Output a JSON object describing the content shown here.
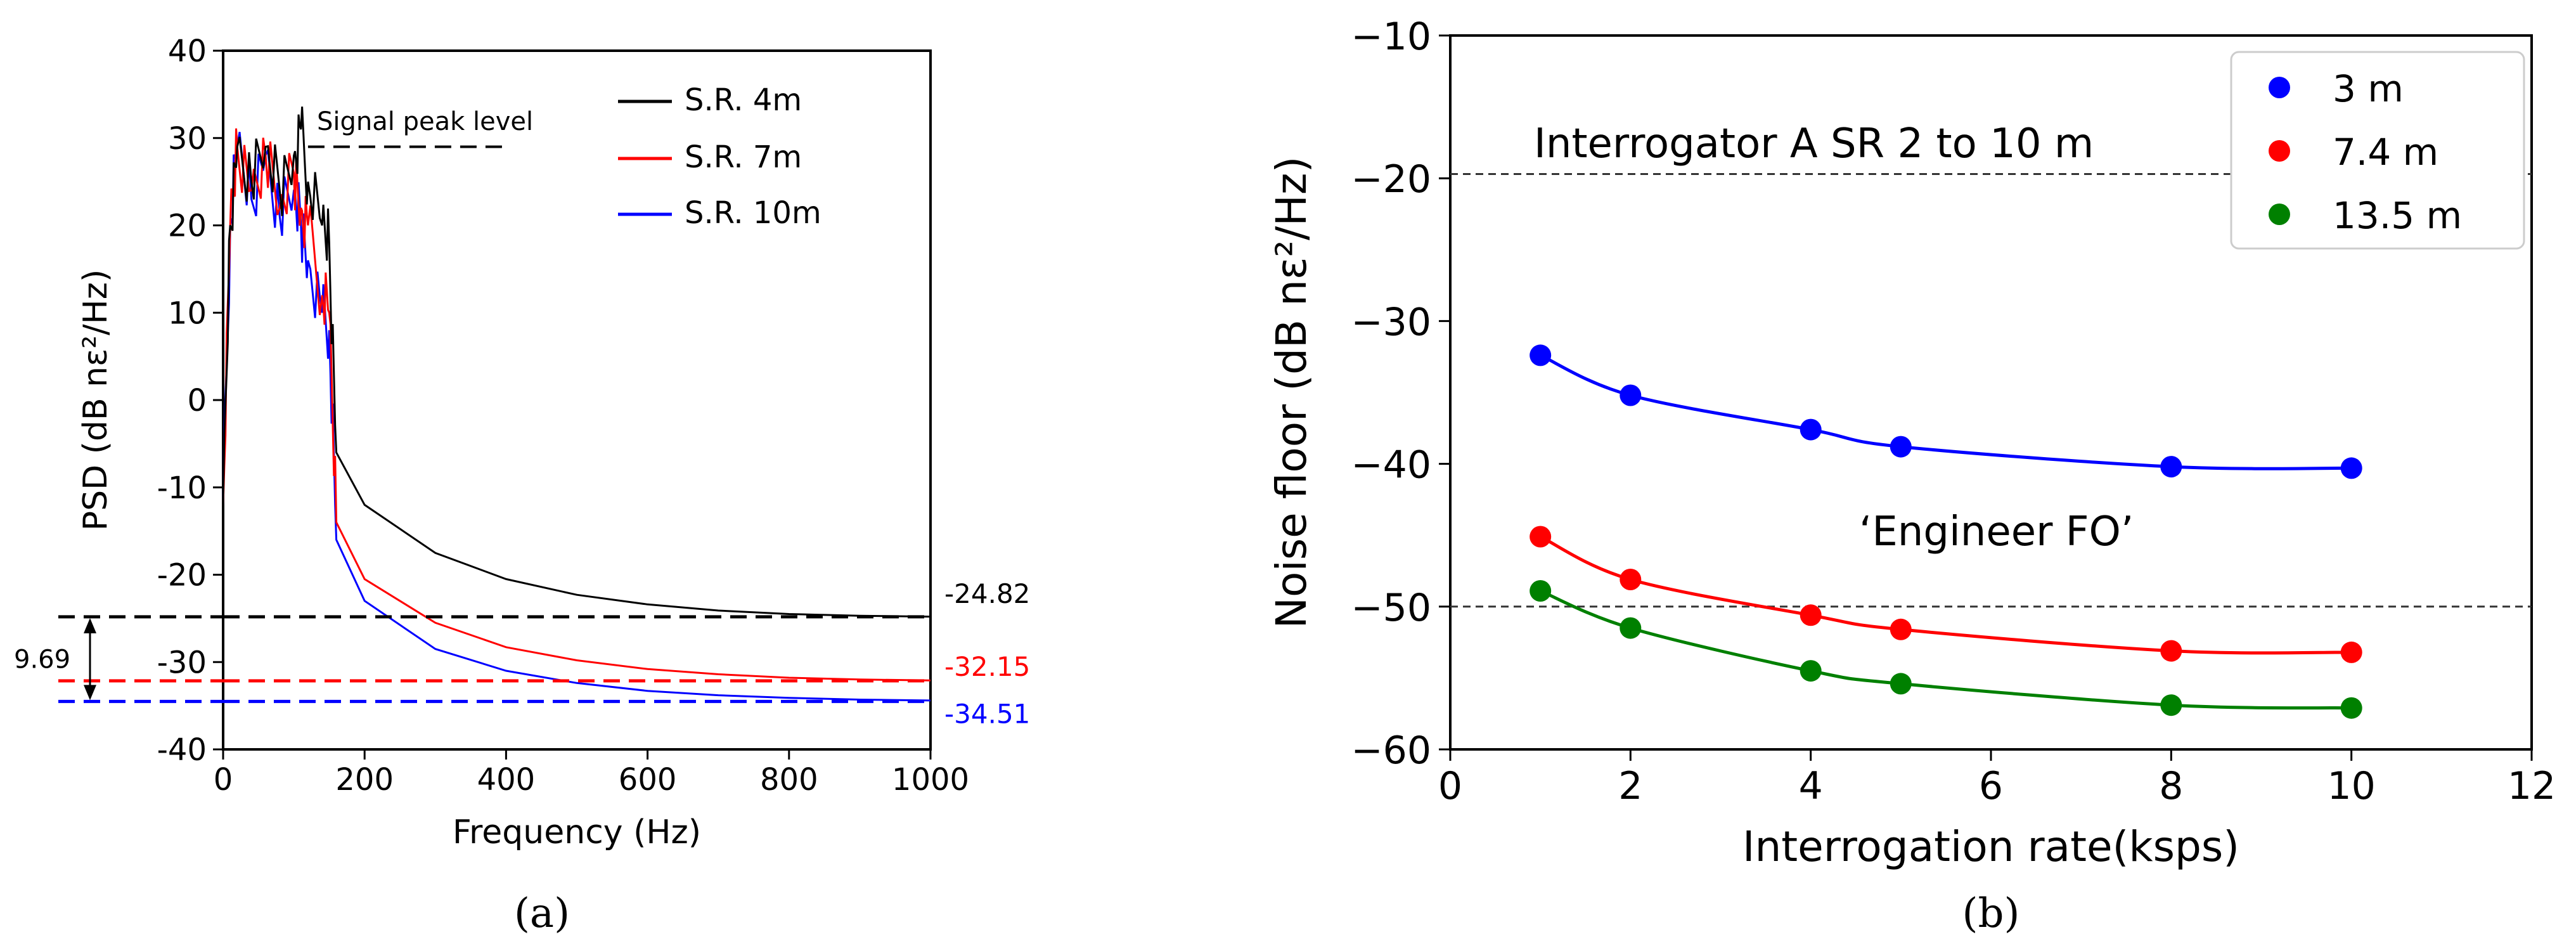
{
  "chart_data": [
    {
      "panel": "a",
      "caption": "(a)",
      "type": "line",
      "xlabel": "Frequency (Hz)",
      "ylabel": "PSD (dB nε²/Hz)",
      "xlim": [
        0,
        1000
      ],
      "ylim": [
        -40,
        40
      ],
      "xticks": [
        0,
        200,
        400,
        600,
        800,
        1000
      ],
      "yticks": [
        -40,
        -30,
        -20,
        -10,
        0,
        10,
        20,
        30,
        40
      ],
      "legend": [
        "S.R. 4m",
        "S.R. 7m",
        "S.R. 10m"
      ],
      "legend_position": "top-right",
      "series": [
        {
          "name": "S.R. 4m",
          "color": "#000000",
          "floor": -24.82,
          "x": [
            0,
            10,
            20,
            40,
            60,
            80,
            100,
            110,
            120,
            140,
            150,
            160,
            200,
            300,
            400,
            500,
            600,
            700,
            800,
            900,
            1000
          ],
          "y": [
            -12,
            20,
            29,
            25,
            29,
            24,
            28,
            31,
            25,
            20,
            18,
            -6,
            -12,
            -17.5,
            -20.5,
            -22.3,
            -23.4,
            -24.1,
            -24.5,
            -24.7,
            -24.8
          ]
        },
        {
          "name": "S.R. 7m",
          "color": "#ff0000",
          "floor": -32.15,
          "x": [
            0,
            10,
            20,
            40,
            60,
            80,
            100,
            110,
            120,
            140,
            150,
            160,
            200,
            300,
            400,
            500,
            600,
            700,
            800,
            900,
            1000
          ],
          "y": [
            -12,
            20,
            29,
            24,
            28,
            22,
            26,
            22,
            20,
            12,
            10,
            -14,
            -20.5,
            -25.5,
            -28.3,
            -29.8,
            -30.8,
            -31.4,
            -31.8,
            -32.0,
            -32.1
          ]
        },
        {
          "name": "S.R. 10m",
          "color": "#0000ff",
          "floor": -34.51,
          "x": [
            0,
            10,
            20,
            40,
            60,
            80,
            100,
            110,
            120,
            140,
            150,
            160,
            200,
            300,
            400,
            500,
            600,
            700,
            800,
            900,
            1000
          ],
          "y": [
            -12,
            20,
            29,
            23,
            28,
            21,
            24,
            20,
            16,
            10,
            8,
            -16,
            -23,
            -28.5,
            -31.0,
            -32.4,
            -33.3,
            -33.8,
            -34.1,
            -34.3,
            -34.4
          ]
        }
      ],
      "annotations": {
        "signal_peak_label": "Signal peak level",
        "signal_peak_value": 29,
        "signal_peak_x": [
          120,
          400
        ],
        "floor_labels": [
          "-24.82",
          "-32.15",
          "-34.51"
        ],
        "difference_label": "9.69"
      }
    },
    {
      "panel": "b",
      "caption": "(b)",
      "type": "scatter",
      "xlabel": "Interrogation rate(ksps)",
      "ylabel": "Noise floor (dB nε²/Hz)",
      "xlim": [
        0,
        12
      ],
      "ylim": [
        -60,
        -10
      ],
      "xticks": [
        0,
        2,
        4,
        6,
        8,
        10,
        12
      ],
      "yticks": [
        -60,
        -50,
        -40,
        -30,
        -20,
        -10
      ],
      "ytick_labels": [
        "−60",
        "−50",
        "−40",
        "−30",
        "−20",
        "−10"
      ],
      "legend_position": "top-right",
      "series": [
        {
          "name": "3 m",
          "color": "#0000ff",
          "x": [
            1,
            2,
            4,
            5,
            8,
            10
          ],
          "y": [
            -32.4,
            -35.2,
            -37.6,
            -38.8,
            -40.2,
            -40.3
          ]
        },
        {
          "name": "7.4 m",
          "color": "#ff0000",
          "x": [
            1,
            2,
            4,
            5,
            8,
            10
          ],
          "y": [
            -45.1,
            -48.1,
            -50.6,
            -51.6,
            -53.1,
            -53.2
          ]
        },
        {
          "name": "13.5 m",
          "color": "#008000",
          "x": [
            1,
            2,
            4,
            5,
            8,
            10
          ],
          "y": [
            -48.9,
            -51.5,
            -54.5,
            -55.4,
            -56.9,
            -57.1
          ]
        }
      ],
      "reference_lines": [
        {
          "label": "Interrogator A SR 2 to 10 m",
          "y": -19.7
        },
        {
          "label": "‘Engineer FO’",
          "y": -50
        }
      ]
    }
  ]
}
